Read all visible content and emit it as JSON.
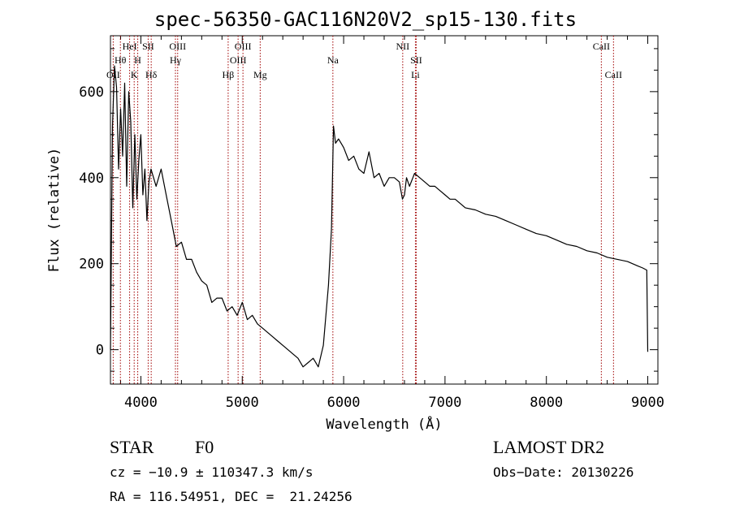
{
  "chart_data": {
    "type": "line",
    "title": "spec-56350-GAC116N20V2_sp15-130.fits",
    "xlabel": "Wavelength (Å)",
    "ylabel": "Flux (relative)",
    "xlim": [
      3700,
      9100
    ],
    "ylim": [
      -80,
      730
    ],
    "xticks": [
      4000,
      5000,
      6000,
      7000,
      8000,
      9000
    ],
    "yticks": [
      0,
      200,
      400,
      600
    ],
    "grid": false,
    "series": [
      {
        "x": [
          3700,
          3720,
          3740,
          3760,
          3780,
          3800,
          3820,
          3840,
          3860,
          3880,
          3900,
          3920,
          3940,
          3960,
          3980,
          4000,
          4020,
          4040,
          4060,
          4080,
          4100,
          4150,
          4200,
          4250,
          4300,
          4350,
          4400,
          4450,
          4500,
          4550,
          4600,
          4650,
          4700,
          4750,
          4800,
          4850,
          4900,
          4950,
          5000,
          5050,
          5100,
          5150,
          5200,
          5250,
          5300,
          5350,
          5400,
          5450,
          5500,
          5550,
          5600,
          5650,
          5700,
          5750,
          5800,
          5850,
          5880,
          5900,
          5920,
          5950,
          6000,
          6050,
          6100,
          6150,
          6200,
          6250,
          6300,
          6350,
          6400,
          6450,
          6500,
          6550,
          6580,
          6600,
          6620,
          6650,
          6700,
          6750,
          6800,
          6850,
          6900,
          6950,
          7000,
          7050,
          7100,
          7150,
          7200,
          7300,
          7400,
          7500,
          7600,
          7700,
          7800,
          7900,
          8000,
          8100,
          8200,
          8300,
          8400,
          8500,
          8600,
          8700,
          8800,
          8900,
          8950,
          8990,
          9000
        ],
        "y": [
          0,
          520,
          660,
          610,
          420,
          560,
          450,
          620,
          380,
          600,
          530,
          330,
          500,
          350,
          440,
          500,
          360,
          420,
          300,
          390,
          420,
          380,
          420,
          360,
          300,
          240,
          250,
          210,
          210,
          180,
          160,
          150,
          110,
          120,
          120,
          90,
          100,
          80,
          110,
          70,
          80,
          60,
          50,
          40,
          30,
          20,
          10,
          0,
          -10,
          -20,
          -40,
          -30,
          -20,
          -40,
          10,
          150,
          280,
          520,
          480,
          490,
          470,
          440,
          450,
          420,
          410,
          460,
          400,
          410,
          380,
          400,
          400,
          390,
          350,
          360,
          400,
          380,
          410,
          400,
          390,
          380,
          380,
          370,
          360,
          350,
          350,
          340,
          330,
          325,
          315,
          310,
          300,
          290,
          280,
          270,
          265,
          255,
          245,
          240,
          230,
          225,
          215,
          210,
          205,
          195,
          190,
          185,
          -5
        ]
      }
    ],
    "lines": [
      {
        "label": "OII",
        "x": 3727,
        "row": 3
      },
      {
        "label": "Hθ",
        "x": 3798,
        "row": 2
      },
      {
        "label": "HeI",
        "x": 3889,
        "row": 1
      },
      {
        "label": "K",
        "x": 3934,
        "row": 3
      },
      {
        "label": "H",
        "x": 3969,
        "row": 2
      },
      {
        "label": "SII",
        "x": 4072,
        "row": 1
      },
      {
        "label": "Hδ",
        "x": 4102,
        "row": 3
      },
      {
        "label": "OIII",
        "x": 4363,
        "row": 1
      },
      {
        "label": "Hγ",
        "x": 4341,
        "row": 2
      },
      {
        "label": "Hβ",
        "x": 4861,
        "row": 3
      },
      {
        "label": "OIII",
        "x": 4959,
        "row": 2
      },
      {
        "label": "OIII",
        "x": 5007,
        "row": 1
      },
      {
        "label": "Mg",
        "x": 5177,
        "row": 3
      },
      {
        "label": "Na",
        "x": 5894,
        "row": 2
      },
      {
        "label": "NII",
        "x": 6583,
        "row": 1
      },
      {
        "label": "SII",
        "x": 6716,
        "row": 2
      },
      {
        "label": "Li",
        "x": 6708,
        "row": 3
      },
      {
        "label": "CaII",
        "x": 8542,
        "row": 1
      },
      {
        "label": "CaII",
        "x": 8662,
        "row": 3
      }
    ]
  },
  "info": {
    "object_type": "STAR",
    "subclass": "F0",
    "survey": "LAMOST DR2",
    "cz": "cz = −10.9 ± 110347.3 km/s",
    "obs_date": "Obs−Date: 20130226",
    "coords": "RA = 116.54951, DEC =  21.24256"
  }
}
